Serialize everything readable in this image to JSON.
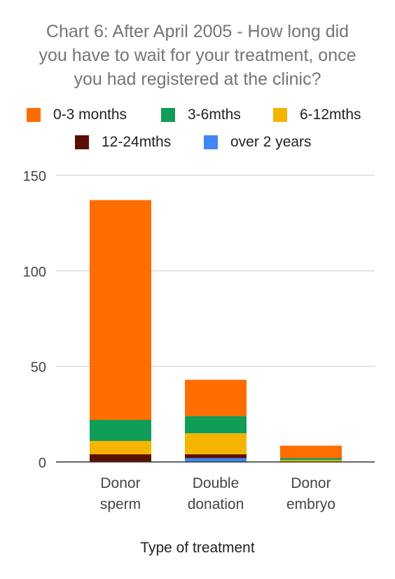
{
  "chart_data": {
    "type": "bar",
    "stacked": true,
    "title_lines": [
      "Chart 6: After April 2005 - How long did",
      "you have to wait for your treatment, once",
      "you had registered at the clinic?"
    ],
    "xlabel": "Type of treatment",
    "ylabel": "",
    "ylim": [
      0,
      150
    ],
    "yticks": [
      "0",
      "50",
      "100",
      "150"
    ],
    "grid": true,
    "legend_position": "top",
    "categories": [
      [
        "Donor",
        "sperm"
      ],
      [
        "Double",
        "donation"
      ],
      [
        "Donor",
        "embryo"
      ]
    ],
    "series": [
      {
        "name": "over 2 years",
        "color": "#4285f4",
        "values": [
          0,
          2,
          0
        ]
      },
      {
        "name": "12-24mths",
        "color": "#5b0f00",
        "values": [
          4,
          2,
          0
        ]
      },
      {
        "name": "6-12mths",
        "color": "#f4b400",
        "values": [
          7,
          11,
          1
        ]
      },
      {
        "name": "3-6mths",
        "color": "#0f9d58",
        "values": [
          11,
          9,
          1
        ]
      },
      {
        "name": "0-3 months",
        "color": "#ff6d00",
        "values": [
          115,
          19,
          6.5
        ]
      }
    ],
    "legend_order": [
      "0-3 months",
      "3-6mths",
      "6-12mths",
      "12-24mths",
      "over 2 years"
    ]
  }
}
